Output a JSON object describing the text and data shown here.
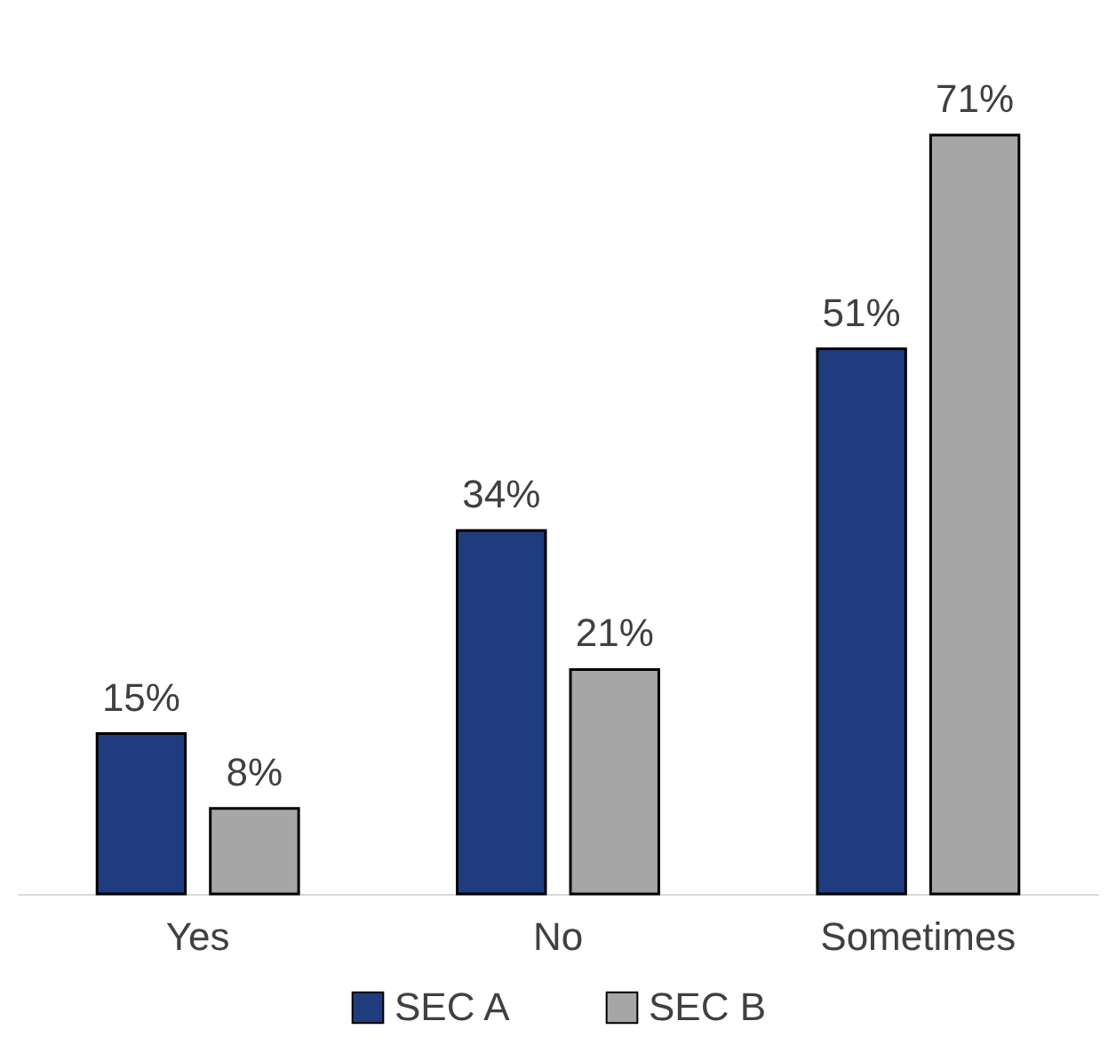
{
  "chart_data": {
    "type": "bar",
    "categories": [
      "Yes",
      "No",
      "Sometimes"
    ],
    "series": [
      {
        "name": "SEC A",
        "color": "#1f3c7f",
        "values": [
          15,
          34,
          51
        ],
        "value_labels": [
          "15%",
          "34%",
          "51%"
        ]
      },
      {
        "name": "SEC B",
        "color": "#a6a6a6",
        "values": [
          8,
          21,
          71
        ],
        "value_labels": [
          "8%",
          "21%",
          "71%"
        ]
      }
    ],
    "legend": "bottom"
  }
}
